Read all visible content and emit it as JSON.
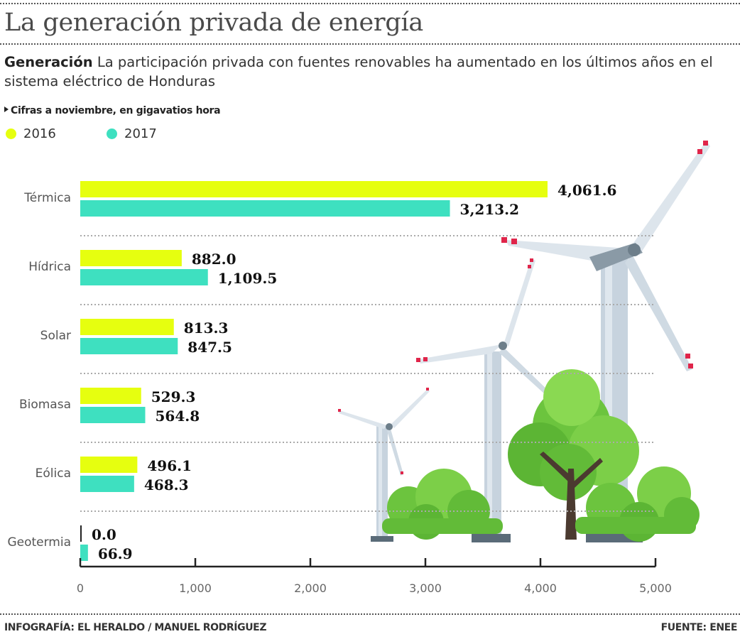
{
  "header": {
    "title": "La generación privada de energía",
    "subtitle_bold": "Generación",
    "subtitle_text": " La participación privada con fuentes renovables ha aumentado en los últimos años en el sistema eléctrico de Honduras",
    "note": "Cifras a noviembre, en gigavatios hora"
  },
  "colors": {
    "y2016": "#e6ff0f",
    "y2017": "#3ee0c0",
    "axis": "#222222",
    "label_text": "#555555",
    "value_text": "#111111"
  },
  "chart_data": {
    "type": "bar",
    "orientation": "horizontal",
    "title": "La generación privada de energía",
    "xlabel": "",
    "ylabel": "",
    "unit": "GWh",
    "categories": [
      "Térmica",
      "Hídrica",
      "Solar",
      "Biomasa",
      "Eólica",
      "Geotermia"
    ],
    "series": [
      {
        "name": "2016",
        "color": "#e6ff0f",
        "values": [
          4061.6,
          882.0,
          813.3,
          529.3,
          496.1,
          0.0
        ],
        "labels": [
          "4,061.6",
          "882.0",
          "813.3",
          "529.3",
          "496.1",
          "0.0"
        ]
      },
      {
        "name": "2017",
        "color": "#3ee0c0",
        "values": [
          3213.2,
          1109.5,
          847.5,
          564.8,
          468.3,
          66.9
        ],
        "labels": [
          "3,213.2",
          "1,109.5",
          "847.5",
          "564.8",
          "468.3",
          "66.9"
        ]
      }
    ],
    "xlim": [
      0,
      5000
    ],
    "xticks": [
      0,
      1000,
      2000,
      3000,
      4000,
      5000
    ],
    "xtick_labels": [
      "0",
      "1,000",
      "2,000",
      "3,000",
      "4,000",
      "5,000"
    ],
    "legend": [
      "2016",
      "2017"
    ],
    "legend_position": "top-left",
    "grid": false
  },
  "footer": {
    "credit": "INFOGRAFÍA: EL HERALDO / MANUEL RODRÍGUEZ",
    "source": "FUENTE: ENEE"
  },
  "illustration": {
    "subject": "wind-turbines-and-trees"
  }
}
